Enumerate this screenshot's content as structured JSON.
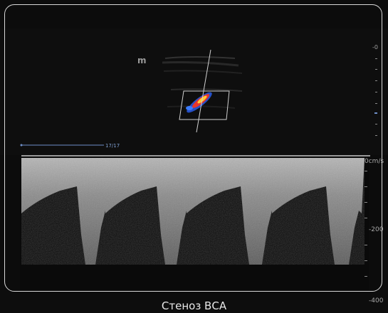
{
  "image": {
    "caption": "Стеноз ВСА",
    "bmode_marker": "m",
    "frame_counter": "17/17",
    "scale": {
      "top_mark": "-0",
      "baseline_label": "0cm/s",
      "mid_label": "-200",
      "bottom_label": "-400"
    },
    "colors": {
      "background": "#0c0c0c",
      "frame": "#d8d8d8",
      "spectrum": "#9a9a9a",
      "baseline": "#c8c8c8",
      "doppler_red": "#e8352a",
      "doppler_yellow": "#ffcc33",
      "doppler_blue": "#2a5ce8"
    }
  }
}
